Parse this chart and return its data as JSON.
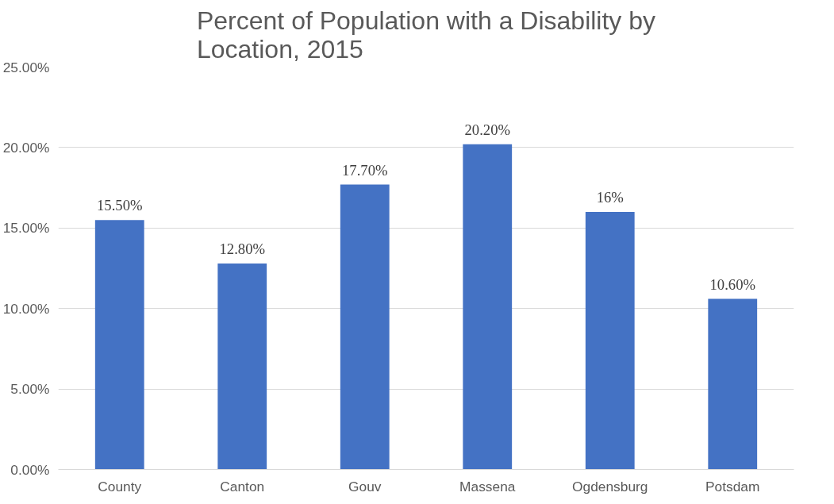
{
  "chart_data": {
    "type": "bar",
    "title": "Percent of Population with a Disability by Location, 2015",
    "categories": [
      "County",
      "Canton",
      "Gouv",
      "Massena",
      "Ogdensburg",
      "Potsdam"
    ],
    "values": [
      15.5,
      12.8,
      17.7,
      20.2,
      16,
      10.6
    ],
    "value_labels": [
      "15.50%",
      "12.80%",
      "17.70%",
      "20.20%",
      "16%",
      "10.60%"
    ],
    "color": "#4472c4",
    "ylim": [
      0,
      25
    ],
    "yticks": [
      {
        "value": 0,
        "label": "0.00%"
      },
      {
        "value": 5,
        "label": "5.00%"
      },
      {
        "value": 10,
        "label": "10.00%"
      },
      {
        "value": 15,
        "label": "15.00%"
      },
      {
        "value": 20,
        "label": "20.00%"
      },
      {
        "value": 25,
        "label": "25.00%"
      }
    ],
    "grid": "y"
  }
}
